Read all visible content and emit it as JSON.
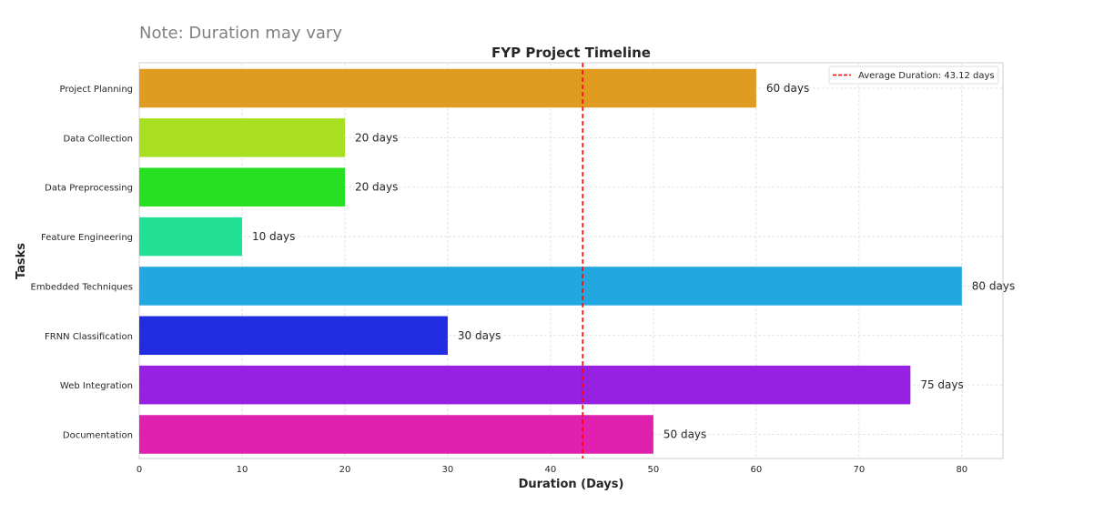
{
  "chart_data": {
    "type": "bar",
    "orientation": "horizontal",
    "title": "FYP Project Timeline",
    "note": "Note: Duration may vary",
    "xlabel": "Duration (Days)",
    "ylabel": "Tasks",
    "xlim": [
      0,
      84
    ],
    "xticks": [
      0,
      10,
      20,
      30,
      40,
      50,
      60,
      70,
      80
    ],
    "grid": true,
    "legend_position": "top-right",
    "categories": [
      "Project Planning",
      "Data Collection",
      "Data Preprocessing",
      "Feature Engineering",
      "Embedded Techniques",
      "FRNN Classification",
      "Web Integration",
      "Documentation"
    ],
    "values": [
      60,
      20,
      20,
      10,
      80,
      30,
      75,
      50
    ],
    "value_labels": [
      "60 days",
      "20 days",
      "20 days",
      "10 days",
      "80 days",
      "30 days",
      "75 days",
      "50 days"
    ],
    "colors": [
      "#e09c21",
      "#a8e021",
      "#26e021",
      "#21e096",
      "#21a8e0",
      "#212de0",
      "#9621e0",
      "#e021b0"
    ],
    "reference_line": {
      "value": 43.125,
      "label": "Average Duration: 43.12 days",
      "color": "#ff0000",
      "style": "dashed"
    }
  }
}
